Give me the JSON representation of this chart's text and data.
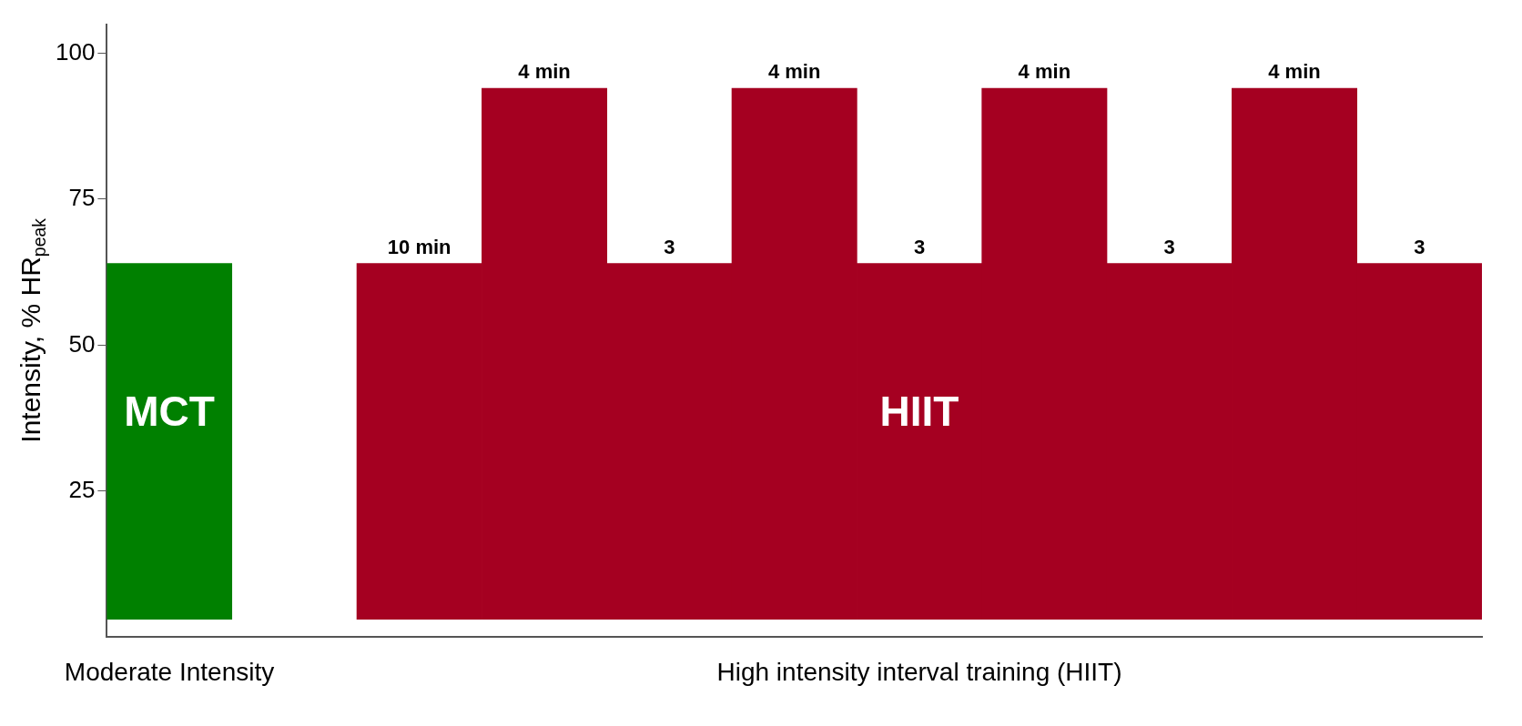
{
  "chart_data": {
    "type": "bar",
    "ylabel": "Intensity, % HR$_{peak}$",
    "categories": [
      null,
      null,
      null,
      null,
      null,
      null,
      null,
      null,
      null,
      null,
      null
    ],
    "base": [
      3,
      null,
      3,
      3,
      3,
      3,
      3,
      3,
      3,
      3,
      3
    ],
    "values": [
      61,
      null,
      61,
      91,
      61,
      91,
      61,
      91,
      61,
      91,
      61
    ],
    "colors": [
      "#008000",
      "#ffffff",
      "#a50021",
      "#a50021",
      "#a50021",
      "#a50021",
      "#a50021",
      "#a50021",
      "#a50021",
      "#a50021",
      "#a50021"
    ],
    "annotations": [
      "MCT",
      "HIIT",
      "Moderate Intensity",
      "High intensity interval training (HIIT)",
      "10 min",
      "4 min",
      "3",
      "4 min",
      "3",
      "4 min",
      "3",
      "4 min",
      "3"
    ],
    "ylim": [
      0,
      105
    ],
    "yticks": [
      25,
      50,
      75,
      100
    ],
    "grid": false,
    "legend": false
  }
}
